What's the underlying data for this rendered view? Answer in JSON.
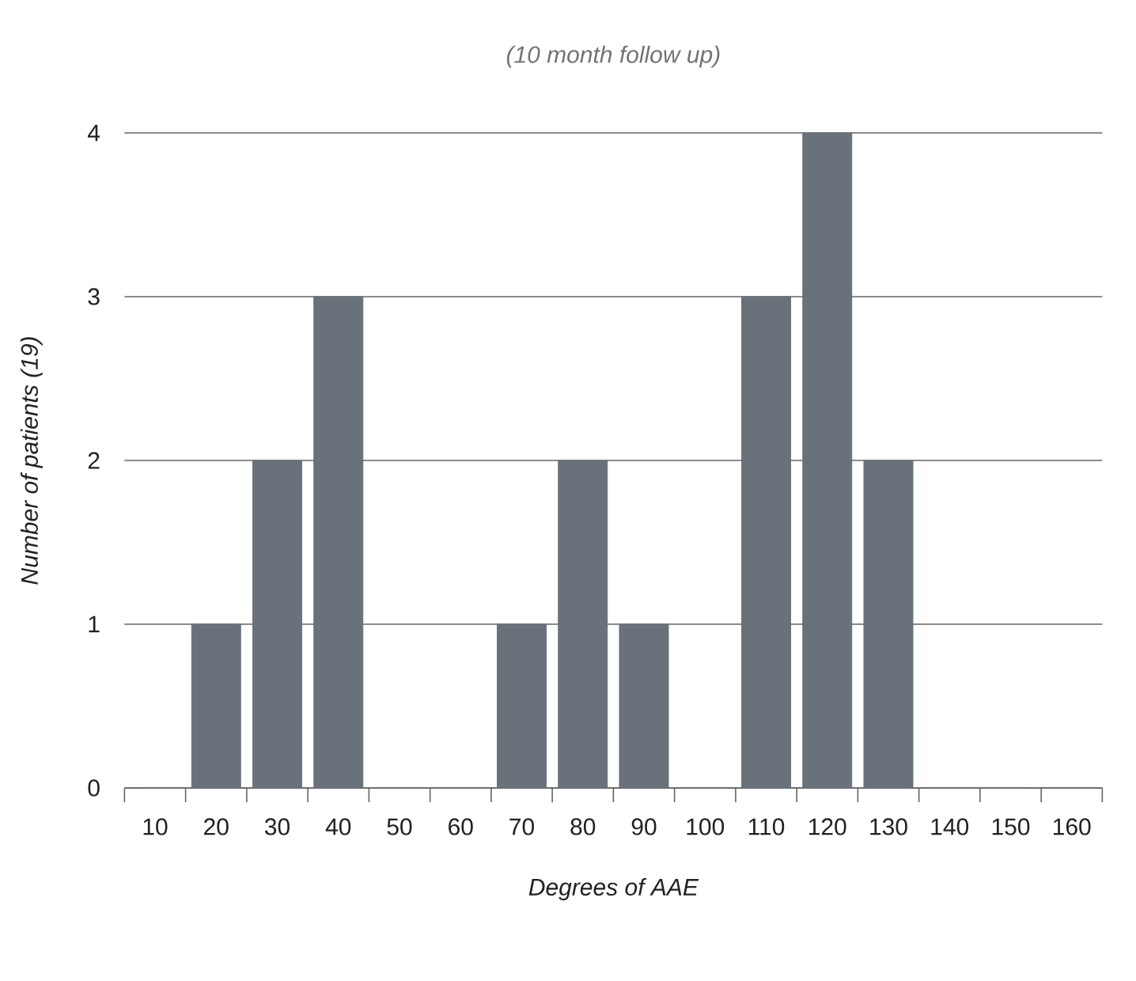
{
  "chart_data": {
    "type": "bar",
    "title": "(10 month follow up)",
    "xlabel": "Degrees of AAE",
    "ylabel": "Number of patients (19)",
    "categories": [
      "10",
      "20",
      "30",
      "40",
      "50",
      "60",
      "70",
      "80",
      "90",
      "100",
      "110",
      "120",
      "130",
      "140",
      "150",
      "160"
    ],
    "values": [
      0,
      1,
      2,
      3,
      0,
      0,
      1,
      2,
      1,
      0,
      3,
      4,
      2,
      0,
      0,
      0
    ],
    "color": "#69727a",
    "ylim": [
      0,
      4
    ],
    "yticks": [
      0,
      1,
      2,
      3,
      4
    ],
    "grid": "y"
  }
}
